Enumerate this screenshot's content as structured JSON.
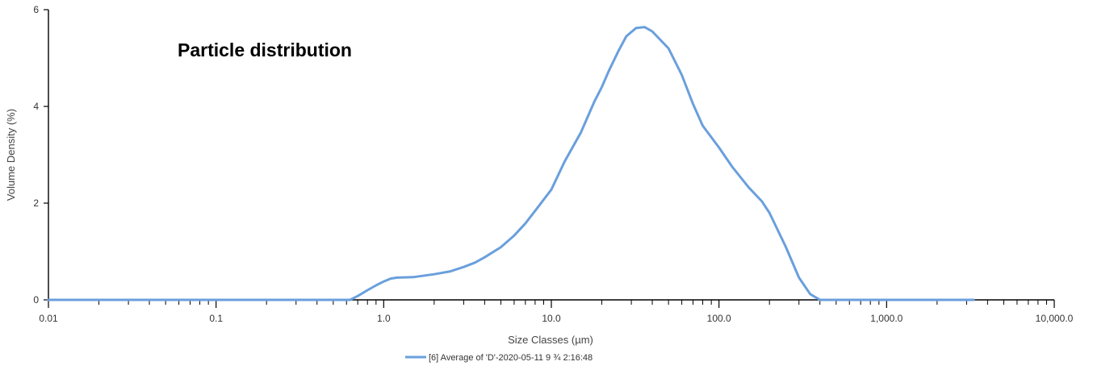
{
  "chart_data": {
    "type": "line",
    "title": "",
    "annotation": "Particle distribution",
    "xlabel": "Size Classes (µm)",
    "ylabel": "Volume Density (%)",
    "x_scale": "log",
    "xlim": [
      0.01,
      10000
    ],
    "ylim": [
      0,
      6
    ],
    "x_ticks": [
      {
        "value": 0.01,
        "label": "0.01"
      },
      {
        "value": 0.1,
        "label": "0.1"
      },
      {
        "value": 1,
        "label": "1.0"
      },
      {
        "value": 10,
        "label": "10.0"
      },
      {
        "value": 100,
        "label": "100.0"
      },
      {
        "value": 1000,
        "label": "1,000.0"
      },
      {
        "value": 10000,
        "label": "10,000.0"
      }
    ],
    "y_ticks": [
      {
        "value": 0,
        "label": "0"
      },
      {
        "value": 2,
        "label": "2"
      },
      {
        "value": 4,
        "label": "4"
      },
      {
        "value": 6,
        "label": "6"
      }
    ],
    "grid": false,
    "legend_position": "bottom-center",
    "series": [
      {
        "name": "[6] Average of 'D'-2020-05-11 9 ¾  2:16:48",
        "color": "#6a9fdc",
        "x": [
          0.01,
          0.3,
          0.63,
          0.7,
          0.8,
          0.9,
          1.0,
          1.1,
          1.2,
          1.5,
          2.0,
          2.5,
          3.0,
          3.5,
          4.0,
          5.0,
          6.0,
          7.0,
          8.0,
          10.0,
          12.0,
          15.0,
          18.0,
          20.0,
          22.0,
          25.0,
          28.0,
          32.0,
          36.0,
          40.0,
          50.0,
          60.0,
          70.0,
          80.0,
          100.0,
          120.0,
          150.0,
          180.0,
          200.0,
          250.0,
          300.0,
          350.0,
          400.0,
          500.0,
          1000.0,
          3300.0
        ],
        "y": [
          0,
          0,
          0,
          0.08,
          0.2,
          0.3,
          0.38,
          0.44,
          0.46,
          0.47,
          0.53,
          0.59,
          0.68,
          0.77,
          0.88,
          1.09,
          1.33,
          1.58,
          1.84,
          2.28,
          2.86,
          3.46,
          4.09,
          4.4,
          4.73,
          5.13,
          5.45,
          5.62,
          5.64,
          5.55,
          5.2,
          4.65,
          4.05,
          3.6,
          3.15,
          2.75,
          2.33,
          2.04,
          1.8,
          1.1,
          0.46,
          0.12,
          0,
          0,
          0,
          0
        ]
      }
    ]
  }
}
